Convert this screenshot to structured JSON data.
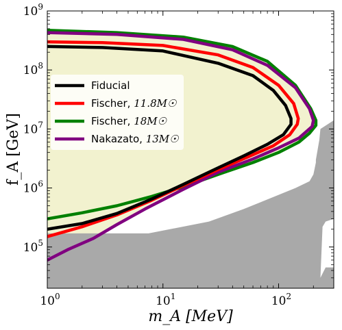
{
  "chart_data": {
    "type": "area",
    "xlabel": "m_A  [MeV]",
    "ylabel": "f_A  [GeV]",
    "xscale": "log",
    "yscale": "log",
    "xlim": [
      1,
      300
    ],
    "ylim": [
      20000,
      1000000000
    ],
    "xticks": [
      1,
      10,
      100
    ],
    "xtick_labels": [
      [
        "10",
        "0"
      ],
      [
        "10",
        "1"
      ],
      [
        "10",
        "2"
      ]
    ],
    "yticks": [
      100000,
      1000000,
      10000000,
      100000000,
      1000000000
    ],
    "ytick_labels": [
      [
        "10",
        "5"
      ],
      [
        "10",
        "6"
      ],
      [
        "10",
        "7"
      ],
      [
        "10",
        "8"
      ],
      [
        "10",
        "9"
      ]
    ],
    "grid": false,
    "legend_position": "center-left",
    "colors": {
      "excluded_gray": "#a9a9a9",
      "fill": "#f2f2cf",
      "Fiducial": "#000000",
      "Fischer118": "#ff0000",
      "Fischer18": "#008000",
      "Nakazato13": "#800080"
    },
    "excluded_region": {
      "name": "",
      "points": [
        [
          1,
          20000
        ],
        [
          1,
          170000
        ],
        [
          7.5,
          170000
        ],
        [
          25,
          270000
        ],
        [
          50,
          440000
        ],
        [
          140,
          1000000
        ],
        [
          185,
          1300000
        ],
        [
          200,
          1700000
        ],
        [
          210,
          2700000
        ],
        [
          210,
          3000000
        ],
        [
          225,
          6500000
        ],
        [
          230,
          10000000
        ],
        [
          300,
          14000000
        ],
        [
          300,
          20000
        ]
      ]
    },
    "white_notch": {
      "points": [
        [
          230,
          30000
        ],
        [
          240,
          220000
        ],
        [
          255,
          270000
        ],
        [
          300,
          300000
        ],
        [
          300,
          45000
        ],
        [
          255,
          45000
        ]
      ]
    },
    "series": [
      {
        "name": "Fiducial",
        "legend_main": "Fiducial",
        "legend_math": "",
        "x": [
          1,
          2,
          4,
          8,
          15,
          30,
          50,
          80,
          110,
          128,
          128,
          115,
          90,
          60,
          30,
          10,
          3,
          1
        ],
        "y": [
          200000,
          250000,
          370000,
          650000,
          1150000,
          2200000,
          3500000,
          5500000,
          8000000,
          12000000,
          15000000,
          25000000,
          45000000,
          80000000,
          130000000,
          210000000,
          240000000,
          250000000
        ]
      },
      {
        "name": "Fischer, 11.8M☉",
        "legend_main": "Fischer, ",
        "legend_math": "11.8M☉",
        "x": [
          1,
          2,
          4,
          8,
          15,
          30,
          55,
          90,
          125,
          145,
          148,
          135,
          100,
          60,
          30,
          10,
          3,
          1
        ],
        "y": [
          150000,
          220000,
          350000,
          620000,
          1100000,
          2050000,
          3400000,
          5200000,
          8000000,
          12000000,
          15000000,
          27000000,
          55000000,
          110000000,
          180000000,
          260000000,
          290000000,
          300000000
        ]
      },
      {
        "name": "Fischer, 18M☉",
        "legend_main": "Fischer, ",
        "legend_math": "18M☉",
        "x": [
          1,
          2,
          4,
          8,
          15,
          30,
          60,
          100,
          150,
          185,
          210,
          210,
          190,
          140,
          80,
          40,
          15,
          4,
          1
        ],
        "y": [
          300000,
          380000,
          500000,
          720000,
          1050000,
          1700000,
          2700000,
          4000000,
          6000000,
          8500000,
          11500000,
          14000000,
          22000000,
          55000000,
          140000000,
          250000000,
          360000000,
          430000000,
          470000000
        ]
      },
      {
        "name": "Nakazato, 13M☉",
        "legend_main": "Nakazato, ",
        "legend_math": "13M☉",
        "x": [
          1,
          1.5,
          2.5,
          4,
          7,
          15,
          30,
          60,
          100,
          150,
          195,
          200,
          185,
          140,
          80,
          40,
          15,
          4,
          1
        ],
        "y": [
          60000,
          90000,
          140000,
          240000,
          440000,
          950000,
          1850000,
          3100000,
          4800000,
          7000000,
          11000000,
          14000000,
          22000000,
          50000000,
          120000000,
          220000000,
          330000000,
          400000000,
          430000000
        ]
      }
    ]
  }
}
